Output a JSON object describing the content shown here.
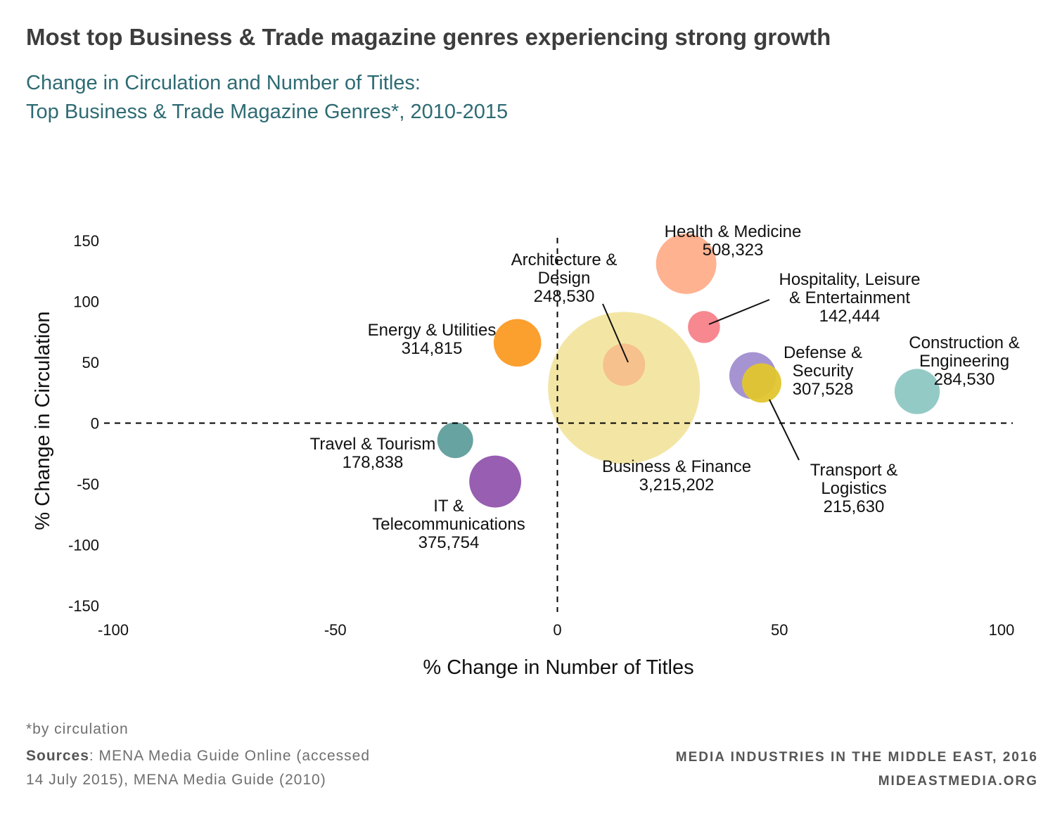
{
  "header": {
    "title": "Most top Business & Trade magazine genres experiencing strong growth",
    "subtitle_line1": "Change in Circulation and Number of Titles:",
    "subtitle_line2": "Top Business & Trade Magazine Genres*, 2010-2015"
  },
  "footer": {
    "footnote": "*by circulation",
    "sources_label": "Sources",
    "sources_line1_rest": ": MENA Media Guide Online (accessed",
    "sources_line2": "14 July 2015), MENA Media Guide (2010)",
    "brand_line1": "MEDIA INDUSTRIES IN THE MIDDLE EAST, 2016",
    "brand_line2": "MIDEASTMEDIA.ORG"
  },
  "chart_data": {
    "type": "scatter",
    "subtype": "bubble",
    "xlabel": "% Change in Number of Titles",
    "ylabel": "% Change in Circulation",
    "xlim": [
      -100,
      100
    ],
    "ylim": [
      -150,
      150
    ],
    "x_ticks": [
      -100,
      -50,
      0,
      50,
      100
    ],
    "y_ticks": [
      150,
      100,
      50,
      0,
      -50,
      -100,
      -150
    ],
    "x_tick_labels": [
      "-100",
      "-50",
      "0",
      "50",
      "100"
    ],
    "y_tick_labels": [
      "150",
      "100",
      "50",
      "0",
      "-50",
      "-100",
      "-150"
    ],
    "zero_lines": "dashed",
    "grid": false,
    "legend": "none",
    "size_variable": "circulation",
    "series": [
      {
        "name_lines": [
          "Business & Finance"
        ],
        "value_label": "3,215,202",
        "x": 15,
        "y": 29,
        "size": 3215202,
        "color": "#f2e39b",
        "opacity": 0.9
      },
      {
        "name_lines": [
          "Health & Medicine"
        ],
        "value_label": "508,323",
        "x": 29,
        "y": 131,
        "size": 508323,
        "color": "#ffae8a",
        "opacity": 0.95
      },
      {
        "name_lines": [
          "IT &",
          "Telecommunications"
        ],
        "value_label": "375,754",
        "x": -14,
        "y": -48,
        "size": 375754,
        "color": "#9155ad",
        "opacity": 0.95
      },
      {
        "name_lines": [
          "Energy & Utilities"
        ],
        "value_label": "314,815",
        "x": -9,
        "y": 66,
        "size": 314815,
        "color": "#fb9a24",
        "opacity": 0.95
      },
      {
        "name_lines": [
          "Defense &",
          "Security"
        ],
        "value_label": "307,528",
        "x": 44,
        "y": 39,
        "size": 307528,
        "color": "#9b88cc",
        "opacity": 0.9
      },
      {
        "name_lines": [
          "Construction &",
          "Engineering"
        ],
        "value_label": "284,530",
        "x": 81,
        "y": 26,
        "size": 284530,
        "color": "#8ec7c3",
        "opacity": 0.95
      },
      {
        "name_lines": [
          "Architecture &",
          "Design"
        ],
        "value_label": "248,530",
        "x": 15,
        "y": 48,
        "size": 248530,
        "color": "#f5bf8a",
        "opacity": 0.95
      },
      {
        "name_lines": [
          "Transport &",
          "Logistics"
        ],
        "value_label": "215,630",
        "x": 46,
        "y": 33,
        "size": 215630,
        "color": "#e2c52e",
        "opacity": 0.95
      },
      {
        "name_lines": [
          "Travel & Tourism"
        ],
        "value_label": "178,838",
        "x": -23,
        "y": -14,
        "size": 178838,
        "color": "#5f9e9b",
        "opacity": 0.95
      },
      {
        "name_lines": [
          "Hospitality, Leisure",
          "& Entertainment"
        ],
        "value_label": "142,444",
        "x": 33,
        "y": 79,
        "size": 142444,
        "color": "#f7828a",
        "opacity": 0.95
      }
    ]
  }
}
